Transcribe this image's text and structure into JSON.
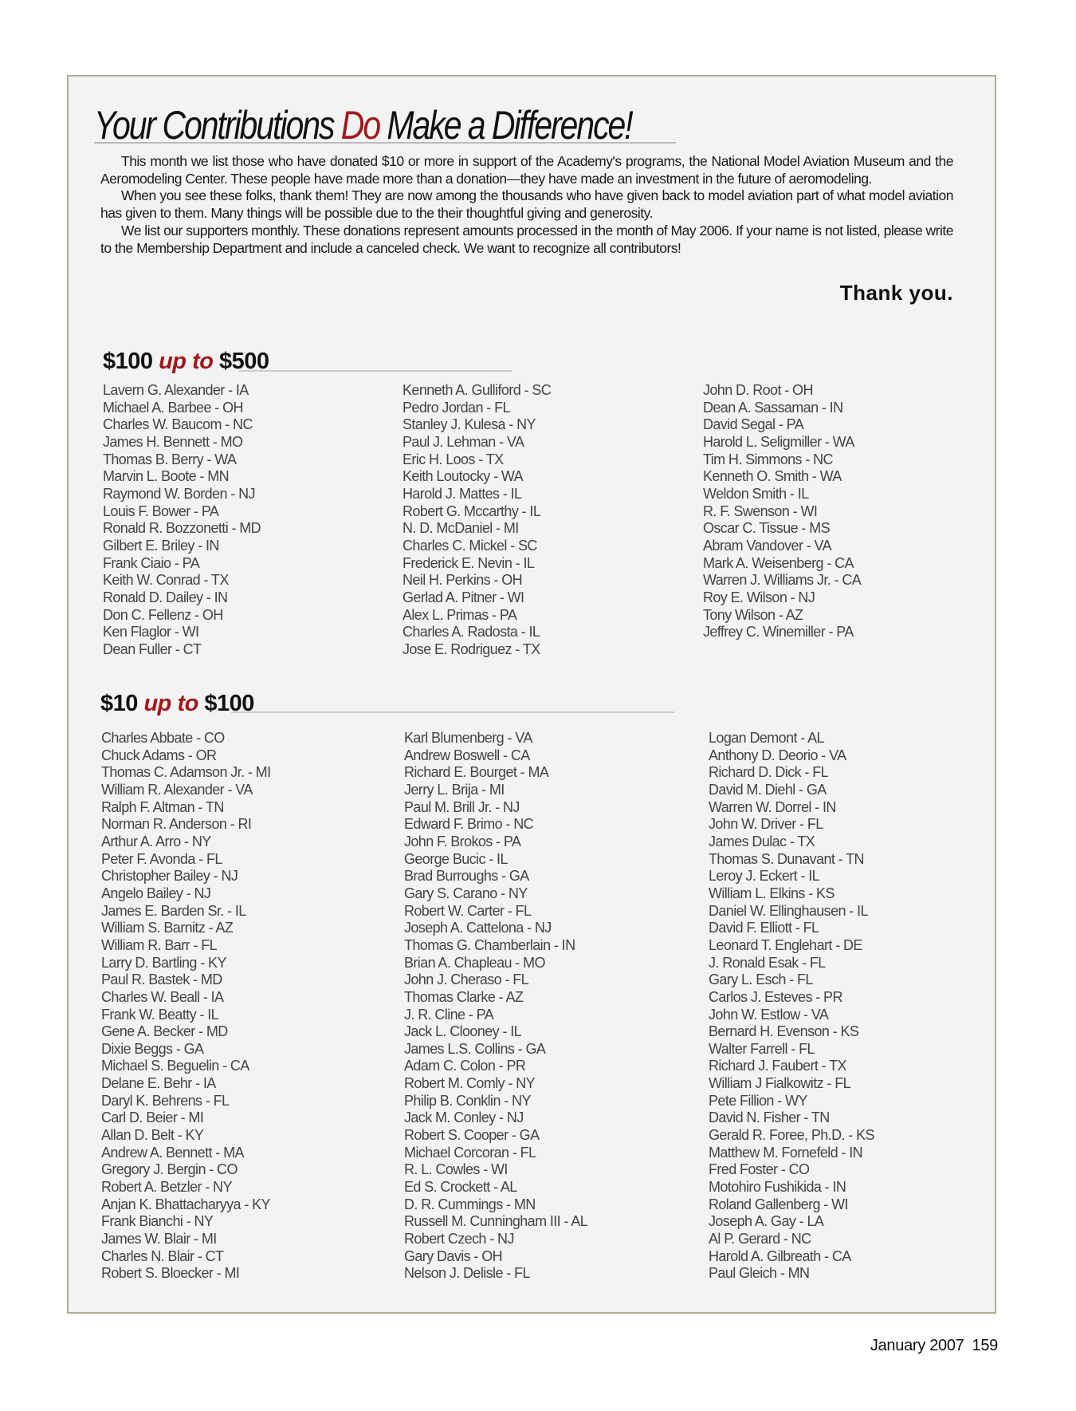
{
  "article": {
    "title_part1": "Your Contributions ",
    "title_highlight": "Do",
    "title_part2": " Make a Difference!",
    "paragraphs": [
      "This month we list those who have donated $10 or more in support of the Academy's programs, the National Model Aviation Museum and the Aeromodeling Center. These people have made more than a donation—they have made an investment in the future of aeromodeling.",
      "When you see these folks, thank them! They are now among the thousands who have given back to model aviation part of what model aviation has given to them. Many things will be possible due to the their thoughtful giving and generosity.",
      "We list our supporters monthly. These donations represent amounts processed in the month of May 2006. If your name is not listed, please write to the Membership Department and include a canceled check. We want to recognize all contributors!"
    ],
    "thank_you": "Thank you.",
    "accent_color": "#a3171b"
  },
  "sections": [
    {
      "low": "$100 ",
      "mid": "up to",
      "high": " $500",
      "columns": [
        [
          "Lavern G. Alexander - IA",
          "Michael A. Barbee - OH",
          "Charles W. Baucom - NC",
          "James H. Bennett - MO",
          "Thomas B. Berry - WA",
          "Marvin L. Boote - MN",
          "Raymond W. Borden - NJ",
          "Louis F. Bower - PA",
          "Ronald R. Bozzonetti - MD",
          "Gilbert E. Briley - IN",
          "Frank Ciaio - PA",
          "Keith W. Conrad - TX",
          "Ronald D. Dailey - IN",
          "Don C. Fellenz - OH",
          "Ken Flaglor - WI",
          "Dean Fuller - CT"
        ],
        [
          "Kenneth A. Gulliford - SC",
          "Pedro Jordan - FL",
          "Stanley J. Kulesa - NY",
          "Paul J. Lehman - VA",
          "Eric H. Loos - TX",
          "Keith Loutocky - WA",
          "Harold J. Mattes - IL",
          "Robert G. Mccarthy - IL",
          "N. D. McDaniel - MI",
          "Charles C. Mickel - SC",
          "Frederick E. Nevin - IL",
          "Neil H. Perkins - OH",
          "Gerlad A. Pitner - WI",
          "Alex L. Primas - PA",
          "Charles A. Radosta - IL",
          "Jose E. Rodriguez - TX"
        ],
        [
          "John D. Root - OH",
          "Dean A. Sassaman - IN",
          "David Segal - PA",
          "Harold L. Seligmiller - WA",
          "Tim H. Simmons - NC",
          "Kenneth O. Smith - WA",
          "Weldon Smith - IL",
          "R. F. Swenson - WI",
          "Oscar C. Tissue - MS",
          "Abram Vandover - VA",
          "Mark A. Weisenberg - CA",
          "Warren J. Williams Jr. - CA",
          "Roy E. Wilson - NJ",
          "Tony Wilson - AZ",
          "Jeffrey C. Winemiller - PA"
        ]
      ]
    },
    {
      "low": "$10 ",
      "mid": "up to",
      "high": " $100",
      "columns": [
        [
          "Charles Abbate - CO",
          "Chuck Adams - OR",
          "Thomas C. Adamson Jr. - MI",
          "William R. Alexander - VA",
          "Ralph F. Altman - TN",
          "Norman R. Anderson - RI",
          "Arthur A. Arro - NY",
          "Peter F. Avonda - FL",
          "Christopher Bailey - NJ",
          "Angelo Bailey - NJ",
          "James E. Barden Sr. - IL",
          "William S. Barnitz - AZ",
          "William R. Barr - FL",
          "Larry D. Bartling - KY",
          "Paul R. Bastek - MD",
          "Charles W. Beall - IA",
          "Frank W. Beatty - IL",
          "Gene A. Becker - MD",
          "Dixie Beggs - GA",
          "Michael S. Beguelin - CA",
          "Delane E. Behr - IA",
          "Daryl K. Behrens - FL",
          "Carl D. Beier - MI",
          "Allan D. Belt - KY",
          "Andrew A. Bennett - MA",
          "Gregory J. Bergin - CO",
          "Robert A. Betzler - NY",
          "Anjan K. Bhattacharyya - KY",
          "Frank Bianchi -    NY",
          "James W. Blair - MI",
          "Charles N. Blair - CT",
          "Robert S. Bloecker - MI"
        ],
        [
          "Karl Blumenberg - VA",
          "Andrew Boswell - CA",
          "Richard E. Bourget - MA",
          "Jerry L. Brija - MI",
          "Paul M. Brill Jr. - NJ",
          "Edward F. Brimo - NC",
          "John F. Brokos - PA",
          "George Bucic - IL",
          "Brad Burroughs - GA",
          "Gary S. Carano - NY",
          "Robert W. Carter - FL",
          "Joseph A. Cattelona - NJ",
          "Thomas G. Chamberlain - IN",
          "Brian A. Chapleau - MO",
          "John J. Cheraso - FL",
          "Thomas Clarke - AZ",
          "J. R. Cline - PA",
          "Jack L. Clooney - IL",
          "James L.S. Collins - GA",
          "Adam C. Colon - PR",
          "Robert M. Comly - NY",
          "Philip B. Conklin - NY",
          "Jack M. Conley - NJ",
          "Robert S. Cooper - GA",
          "Michael Corcoran - FL",
          "R. L. Cowles - WI",
          "Ed S. Crockett - AL",
          "D. R. Cummings - MN",
          "Russell M. Cunningham III - AL",
          "Robert Czech - NJ",
          "Gary Davis - OH",
          "Nelson J. Delisle - FL"
        ],
        [
          "Logan Demont - AL",
          "Anthony D. Deorio - VA",
          "Richard D. Dick - FL",
          "David M. Diehl - GA",
          "Warren W. Dorrel - IN",
          "John W. Driver - FL",
          "James Dulac - TX",
          "Thomas S. Dunavant - TN",
          "Leroy J. Eckert - IL",
          "William L. Elkins - KS",
          "Daniel W. Ellinghausen - IL",
          "David F. Elliott - FL",
          "Leonard T. Englehart - DE",
          "J. Ronald Esak - FL",
          "Gary L. Esch - FL",
          "Carlos J. Esteves - PR",
          "John W. Estlow - VA",
          "Bernard H. Evenson - KS",
          "Walter Farrell - FL",
          "Richard J. Faubert - TX",
          "William J Fialkowitz - FL",
          "Pete Fillion - WY",
          "David N. Fisher - TN",
          "Gerald R. Foree, Ph.D. - KS",
          "Matthew M. Fornefeld - IN",
          "Fred Foster - CO",
          "Motohiro Fushikida - IN",
          "Roland Gallenberg - WI",
          "Joseph A. Gay - LA",
          "Al P. Gerard - NC",
          "Harold A. Gilbreath - CA",
          "Paul Gleich - MN"
        ]
      ]
    }
  ],
  "footer": {
    "date": "January 2007",
    "page": "159"
  }
}
